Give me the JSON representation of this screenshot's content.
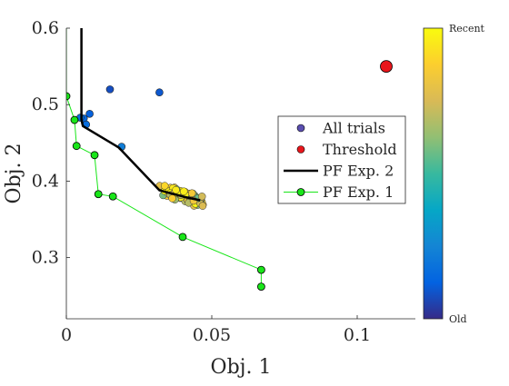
{
  "chart_data": {
    "type": "scatter",
    "xlabel": "Obj. 1",
    "ylabel": "Obj. 2",
    "xlim": [
      0,
      0.12
    ],
    "ylim": [
      0.22,
      0.6
    ],
    "xticks": [
      {
        "value": 0,
        "label": "0"
      },
      {
        "value": 0.05,
        "label": "0.05"
      },
      {
        "value": 0.1,
        "label": "0.1"
      }
    ],
    "yticks": [
      {
        "value": 0.3,
        "label": "0.3"
      },
      {
        "value": 0.4,
        "label": "0.4"
      },
      {
        "value": 0.5,
        "label": "0.5"
      },
      {
        "value": 0.6,
        "label": "0.6"
      }
    ],
    "grid": false,
    "legend_position": "right",
    "legend": [
      {
        "label": "All trials",
        "kind": "marker",
        "color": "#5b4fb0"
      },
      {
        "label": "Threshold",
        "kind": "marker",
        "color": "#e8161c"
      },
      {
        "label": "PF Exp. 2",
        "kind": "line",
        "color": "#000000"
      },
      {
        "label": "PF Exp. 1",
        "kind": "line-marker",
        "color": "#19e619"
      }
    ],
    "colorbar": {
      "top_label": "Recent",
      "bottom_label": "Old",
      "colormap": [
        "#352a87",
        "#0363e1",
        "#1485d4",
        "#06a7c6",
        "#38b99e",
        "#92bf73",
        "#d9ba56",
        "#fcce2e",
        "#f9fb0e"
      ]
    },
    "series": [
      {
        "name": "All trials",
        "type": "scatter",
        "points": [
          {
            "x": 0.015,
            "y": 0.52,
            "t": 0.08
          },
          {
            "x": 0.032,
            "y": 0.516,
            "t": 0.1
          },
          {
            "x": 0.008,
            "y": 0.488,
            "t": 0.12
          },
          {
            "x": 0.006,
            "y": 0.482,
            "t": 0.14
          },
          {
            "x": 0.0068,
            "y": 0.474,
            "t": 0.16
          },
          {
            "x": 0.0048,
            "y": 0.483,
            "t": 0.18
          },
          {
            "x": 0.019,
            "y": 0.445,
            "t": 0.22
          }
        ]
      },
      {
        "name": "Threshold",
        "type": "point",
        "points": [
          {
            "x": 0.11,
            "y": 0.55
          }
        ]
      },
      {
        "name": "PF Exp. 2",
        "type": "line",
        "x": [
          0.0052,
          0.0052,
          0.0057,
          0.018,
          0.032,
          0.036,
          0.041,
          0.046
        ],
        "y": [
          0.6,
          0.48,
          0.472,
          0.444,
          0.388,
          0.384,
          0.379,
          0.375
        ]
      },
      {
        "name": "PF Exp. 1",
        "type": "line",
        "x": [
          0,
          0,
          0.0028,
          0.0035,
          0.0097,
          0.011,
          0.016,
          0.04,
          0.067,
          0.067
        ],
        "y": [
          0.6,
          0.511,
          0.48,
          0.446,
          0.434,
          0.383,
          0.38,
          0.327,
          0.284,
          0.262
        ]
      }
    ],
    "cluster": {
      "center": {
        "x": 0.039,
        "y": 0.387
      },
      "x_range": [
        0.032,
        0.047
      ],
      "y_range": [
        0.375,
        0.402
      ],
      "count": 80
    }
  }
}
